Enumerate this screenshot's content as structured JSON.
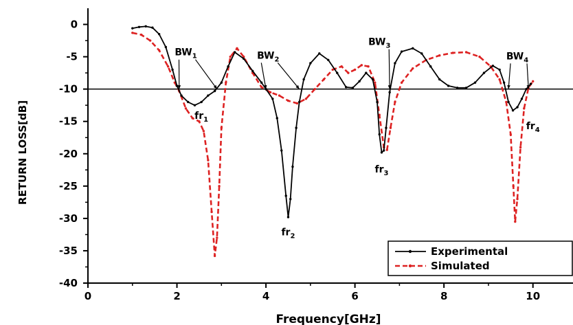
{
  "chart_data": {
    "type": "line",
    "xlabel": "Frequency[GHz]",
    "ylabel": "RETURN LOSS[dB]",
    "xlim": [
      0,
      10.9
    ],
    "ylim": [
      -40,
      2.5
    ],
    "xticks": [
      0,
      2,
      4,
      6,
      8,
      10
    ],
    "yticks": [
      0,
      -5,
      -10,
      -15,
      -20,
      -25,
      -30,
      -35,
      -40
    ],
    "grid": false,
    "legend_position": "bottom-right",
    "reference_line_y": -10,
    "series": [
      {
        "name": "Experimental",
        "color": "#000000",
        "dash": "solid",
        "marker": "star",
        "points": [
          [
            1.0,
            -0.6
          ],
          [
            1.15,
            -0.4
          ],
          [
            1.3,
            -0.3
          ],
          [
            1.45,
            -0.5
          ],
          [
            1.6,
            -1.5
          ],
          [
            1.75,
            -3.5
          ],
          [
            1.9,
            -7.0
          ],
          [
            2.0,
            -9.5
          ],
          [
            2.1,
            -11.0
          ],
          [
            2.25,
            -12.0
          ],
          [
            2.4,
            -12.5
          ],
          [
            2.55,
            -12.0
          ],
          [
            2.7,
            -11.0
          ],
          [
            2.85,
            -10.3
          ],
          [
            3.0,
            -9.0
          ],
          [
            3.15,
            -6.5
          ],
          [
            3.3,
            -4.3
          ],
          [
            3.5,
            -5.3
          ],
          [
            3.7,
            -7.2
          ],
          [
            3.9,
            -9.0
          ],
          [
            4.0,
            -10.0
          ],
          [
            4.15,
            -11.5
          ],
          [
            4.25,
            -14.5
          ],
          [
            4.35,
            -19.5
          ],
          [
            4.45,
            -26.5
          ],
          [
            4.5,
            -29.8
          ],
          [
            4.55,
            -27.0
          ],
          [
            4.6,
            -22.0
          ],
          [
            4.68,
            -16.0
          ],
          [
            4.75,
            -12.0
          ],
          [
            4.85,
            -8.5
          ],
          [
            5.0,
            -6.0
          ],
          [
            5.2,
            -4.5
          ],
          [
            5.4,
            -5.5
          ],
          [
            5.6,
            -7.5
          ],
          [
            5.8,
            -9.7
          ],
          [
            5.95,
            -9.8
          ],
          [
            6.1,
            -8.8
          ],
          [
            6.25,
            -7.5
          ],
          [
            6.4,
            -8.5
          ],
          [
            6.5,
            -12.0
          ],
          [
            6.55,
            -17.0
          ],
          [
            6.6,
            -19.8
          ],
          [
            6.65,
            -19.5
          ],
          [
            6.7,
            -16.0
          ],
          [
            6.78,
            -10.5
          ],
          [
            6.9,
            -6.0
          ],
          [
            7.05,
            -4.2
          ],
          [
            7.3,
            -3.7
          ],
          [
            7.5,
            -4.5
          ],
          [
            7.7,
            -6.5
          ],
          [
            7.9,
            -8.5
          ],
          [
            8.1,
            -9.5
          ],
          [
            8.3,
            -9.8
          ],
          [
            8.5,
            -9.8
          ],
          [
            8.7,
            -9.0
          ],
          [
            8.9,
            -7.5
          ],
          [
            9.1,
            -6.4
          ],
          [
            9.25,
            -7.0
          ],
          [
            9.35,
            -9.0
          ],
          [
            9.45,
            -12.0
          ],
          [
            9.55,
            -13.3
          ],
          [
            9.65,
            -12.8
          ],
          [
            9.75,
            -11.5
          ],
          [
            9.85,
            -10.0
          ],
          [
            9.95,
            -9.2
          ]
        ]
      },
      {
        "name": "Simulated",
        "color": "#dd2222",
        "dash": "dashed",
        "marker": "star",
        "points": [
          [
            1.0,
            -1.3
          ],
          [
            1.2,
            -1.6
          ],
          [
            1.4,
            -2.5
          ],
          [
            1.6,
            -4.0
          ],
          [
            1.8,
            -6.5
          ],
          [
            1.95,
            -9.0
          ],
          [
            2.05,
            -10.3
          ],
          [
            2.2,
            -13.0
          ],
          [
            2.35,
            -14.5
          ],
          [
            2.5,
            -15.0
          ],
          [
            2.6,
            -16.5
          ],
          [
            2.7,
            -21.0
          ],
          [
            2.78,
            -29.0
          ],
          [
            2.85,
            -35.8
          ],
          [
            2.9,
            -33.0
          ],
          [
            2.95,
            -25.0
          ],
          [
            3.0,
            -16.0
          ],
          [
            3.1,
            -9.0
          ],
          [
            3.2,
            -5.0
          ],
          [
            3.35,
            -3.7
          ],
          [
            3.5,
            -5.0
          ],
          [
            3.7,
            -7.5
          ],
          [
            3.9,
            -9.7
          ],
          [
            4.1,
            -10.5
          ],
          [
            4.3,
            -11.0
          ],
          [
            4.5,
            -11.8
          ],
          [
            4.7,
            -12.2
          ],
          [
            4.9,
            -11.5
          ],
          [
            5.1,
            -10.0
          ],
          [
            5.3,
            -8.5
          ],
          [
            5.5,
            -7.0
          ],
          [
            5.7,
            -6.5
          ],
          [
            5.85,
            -7.5
          ],
          [
            6.0,
            -7.0
          ],
          [
            6.15,
            -6.3
          ],
          [
            6.3,
            -6.5
          ],
          [
            6.45,
            -9.0
          ],
          [
            6.55,
            -14.0
          ],
          [
            6.65,
            -19.0
          ],
          [
            6.72,
            -19.4
          ],
          [
            6.8,
            -16.0
          ],
          [
            6.9,
            -12.0
          ],
          [
            7.05,
            -9.0
          ],
          [
            7.3,
            -6.8
          ],
          [
            7.6,
            -5.5
          ],
          [
            7.9,
            -4.8
          ],
          [
            8.2,
            -4.4
          ],
          [
            8.5,
            -4.3
          ],
          [
            8.8,
            -5.0
          ],
          [
            9.05,
            -6.5
          ],
          [
            9.25,
            -8.5
          ],
          [
            9.4,
            -12.0
          ],
          [
            9.5,
            -17.0
          ],
          [
            9.56,
            -25.0
          ],
          [
            9.6,
            -30.5
          ],
          [
            9.65,
            -27.0
          ],
          [
            9.72,
            -19.0
          ],
          [
            9.8,
            -13.0
          ],
          [
            9.9,
            -9.8
          ],
          [
            10.0,
            -8.8
          ]
        ]
      }
    ],
    "annotations": [
      {
        "main": "BW",
        "sub": "1",
        "x": 2.2,
        "y": -4.8,
        "ax": 2.05,
        "ay": -10.0,
        "arrow": true
      },
      {
        "main": "BW",
        "sub": "1",
        "x": 2.2,
        "y": -4.8,
        "ax": 2.9,
        "ay": -10.0,
        "arrow": true
      },
      {
        "main": "fr",
        "sub": "1",
        "x": 2.55,
        "y": -14.6,
        "arrow": false
      },
      {
        "main": "BW",
        "sub": "2",
        "x": 4.05,
        "y": -5.3,
        "ax": 4.0,
        "ay": -10.0,
        "arrow": true
      },
      {
        "main": "BW",
        "sub": "2",
        "x": 4.05,
        "y": -5.3,
        "ax": 4.75,
        "ay": -10.0,
        "arrow": true
      },
      {
        "main": "fr",
        "sub": "2",
        "x": 4.5,
        "y": -32.6,
        "arrow": false
      },
      {
        "main": "BW",
        "sub": "3",
        "x": 6.55,
        "y": -3.2,
        "ax": 6.78,
        "ay": -10.0,
        "arrow": true
      },
      {
        "main": "fr",
        "sub": "3",
        "x": 6.6,
        "y": -22.9,
        "arrow": false
      },
      {
        "main": "BW",
        "sub": "4",
        "x": 9.65,
        "y": -5.4,
        "ax": 9.45,
        "ay": -10.0,
        "arrow": true
      },
      {
        "main": "BW",
        "sub": "4",
        "x": 9.65,
        "y": -5.4,
        "ax": 9.9,
        "ay": -10.0,
        "arrow": true
      },
      {
        "main": "fr",
        "sub": "4",
        "x": 10.0,
        "y": -16.2,
        "arrow": false
      }
    ]
  }
}
